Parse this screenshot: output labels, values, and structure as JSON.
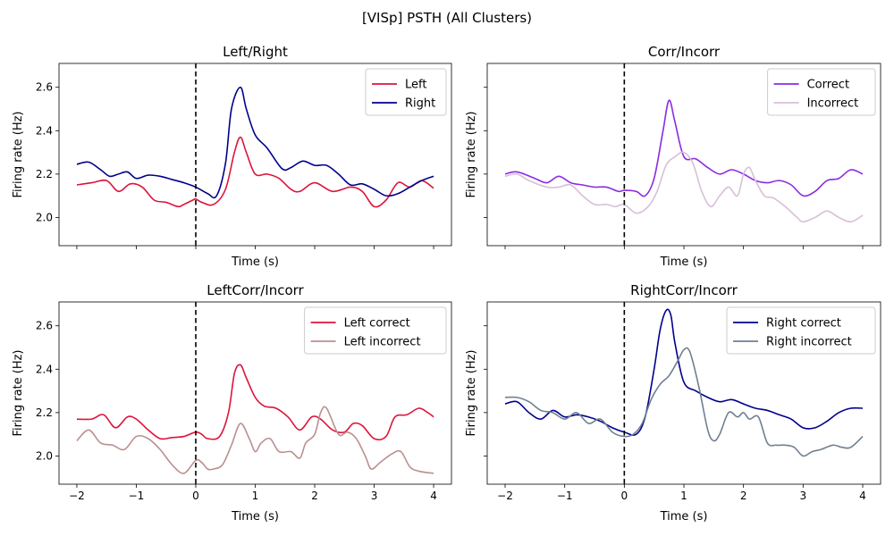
{
  "figure": {
    "suptitle": "[VISp] PSTH (All Clusters)"
  },
  "chart_data": [
    {
      "type": "line",
      "title": "Left/Right",
      "xlabel": "Time (s)",
      "ylabel": "Firing rate (Hz)",
      "xlim": [
        -2.3,
        4.3
      ],
      "ylim": [
        1.87,
        2.71
      ],
      "xticks": [
        -2,
        -1,
        0,
        1,
        2,
        3,
        4
      ],
      "yticks": [
        2.0,
        2.2,
        2.4,
        2.6
      ],
      "show_xticklabels": false,
      "show_yticklabels": true,
      "vline": 0,
      "legend": "upper right",
      "series": [
        {
          "name": "Left",
          "color": "#dc143c",
          "x": [
            -2.0,
            -1.75,
            -1.5,
            -1.3,
            -1.1,
            -0.9,
            -0.7,
            -0.5,
            -0.3,
            -0.2,
            -0.05,
            0.0,
            0.1,
            0.3,
            0.5,
            0.65,
            0.75,
            0.85,
            1.0,
            1.2,
            1.4,
            1.6,
            1.75,
            2.0,
            2.3,
            2.6,
            2.8,
            3.0,
            3.2,
            3.4,
            3.6,
            3.8,
            4.0
          ],
          "y": [
            2.15,
            2.16,
            2.17,
            2.12,
            2.155,
            2.14,
            2.08,
            2.07,
            2.05,
            2.06,
            2.08,
            2.085,
            2.07,
            2.06,
            2.13,
            2.3,
            2.37,
            2.3,
            2.2,
            2.2,
            2.18,
            2.13,
            2.12,
            2.16,
            2.12,
            2.14,
            2.12,
            2.05,
            2.08,
            2.16,
            2.14,
            2.17,
            2.135
          ]
        },
        {
          "name": "Right",
          "color": "#00008b",
          "x": [
            -2.0,
            -1.8,
            -1.6,
            -1.45,
            -1.3,
            -1.15,
            -1.0,
            -0.8,
            -0.6,
            -0.4,
            -0.2,
            0.0,
            0.2,
            0.35,
            0.5,
            0.6,
            0.75,
            0.85,
            1.0,
            1.2,
            1.45,
            1.6,
            1.8,
            2.0,
            2.2,
            2.4,
            2.6,
            2.8,
            3.0,
            3.2,
            3.4,
            3.6,
            3.8,
            4.0
          ],
          "y": [
            2.245,
            2.255,
            2.22,
            2.19,
            2.2,
            2.21,
            2.18,
            2.195,
            2.19,
            2.175,
            2.16,
            2.14,
            2.11,
            2.1,
            2.25,
            2.5,
            2.6,
            2.5,
            2.38,
            2.32,
            2.225,
            2.23,
            2.26,
            2.24,
            2.24,
            2.2,
            2.15,
            2.155,
            2.13,
            2.1,
            2.11,
            2.14,
            2.17,
            2.19
          ]
        }
      ]
    },
    {
      "type": "line",
      "title": "Corr/Incorr",
      "xlabel": "Time (s)",
      "ylabel": "Firing rate (Hz)",
      "xlim": [
        -2.3,
        4.3
      ],
      "ylim": [
        1.87,
        2.71
      ],
      "xticks": [
        -2,
        -1,
        0,
        1,
        2,
        3,
        4
      ],
      "yticks": [
        2.0,
        2.2,
        2.4,
        2.6
      ],
      "show_xticklabels": false,
      "show_yticklabels": false,
      "vline": 0,
      "legend": "upper right",
      "series": [
        {
          "name": "Correct",
          "color": "#8a2be2",
          "x": [
            -2.0,
            -1.8,
            -1.5,
            -1.3,
            -1.1,
            -0.9,
            -0.7,
            -0.5,
            -0.3,
            -0.1,
            0.0,
            0.2,
            0.35,
            0.5,
            0.65,
            0.75,
            0.85,
            1.0,
            1.2,
            1.4,
            1.6,
            1.8,
            2.0,
            2.2,
            2.4,
            2.6,
            2.8,
            3.0,
            3.2,
            3.4,
            3.6,
            3.8,
            4.0
          ],
          "y": [
            2.2,
            2.21,
            2.18,
            2.16,
            2.19,
            2.16,
            2.15,
            2.14,
            2.14,
            2.12,
            2.125,
            2.12,
            2.1,
            2.18,
            2.4,
            2.54,
            2.44,
            2.28,
            2.27,
            2.23,
            2.2,
            2.22,
            2.2,
            2.17,
            2.16,
            2.17,
            2.15,
            2.1,
            2.12,
            2.17,
            2.18,
            2.22,
            2.2
          ]
        },
        {
          "name": "Incorrect",
          "color": "#d8bfd8",
          "x": [
            -2.0,
            -1.8,
            -1.6,
            -1.3,
            -1.1,
            -0.9,
            -0.7,
            -0.5,
            -0.3,
            -0.15,
            0.0,
            0.2,
            0.4,
            0.55,
            0.7,
            0.85,
            1.0,
            1.15,
            1.3,
            1.45,
            1.6,
            1.75,
            1.9,
            2.0,
            2.1,
            2.2,
            2.35,
            2.5,
            2.7,
            2.9,
            3.0,
            3.2,
            3.4,
            3.6,
            3.8,
            4.0
          ],
          "y": [
            2.19,
            2.2,
            2.17,
            2.14,
            2.14,
            2.15,
            2.1,
            2.06,
            2.06,
            2.05,
            2.06,
            2.02,
            2.05,
            2.12,
            2.24,
            2.28,
            2.3,
            2.25,
            2.12,
            2.05,
            2.1,
            2.14,
            2.1,
            2.2,
            2.23,
            2.17,
            2.1,
            2.09,
            2.05,
            2.0,
            1.98,
            2.0,
            2.03,
            2.0,
            1.98,
            2.01
          ]
        }
      ]
    },
    {
      "type": "line",
      "title": "LeftCorr/Incorr",
      "xlabel": "Time (s)",
      "ylabel": "Firing rate (Hz)",
      "xlim": [
        -2.3,
        4.3
      ],
      "ylim": [
        1.87,
        2.71
      ],
      "xticks": [
        -2,
        -1,
        0,
        1,
        2,
        3,
        4
      ],
      "yticks": [
        2.0,
        2.2,
        2.4,
        2.6
      ],
      "show_xticklabels": true,
      "show_yticklabels": true,
      "vline": 0,
      "legend": "upper right",
      "series": [
        {
          "name": "Left correct",
          "color": "#dc143c",
          "x": [
            -2.0,
            -1.75,
            -1.55,
            -1.35,
            -1.15,
            -1.0,
            -0.8,
            -0.6,
            -0.4,
            -0.2,
            0.0,
            0.1,
            0.2,
            0.4,
            0.55,
            0.65,
            0.75,
            0.85,
            1.0,
            1.15,
            1.35,
            1.55,
            1.75,
            1.95,
            2.1,
            2.3,
            2.5,
            2.65,
            2.8,
            3.0,
            3.2,
            3.35,
            3.55,
            3.75,
            3.9,
            4.0
          ],
          "y": [
            2.17,
            2.17,
            2.19,
            2.13,
            2.18,
            2.17,
            2.12,
            2.08,
            2.085,
            2.09,
            2.11,
            2.1,
            2.08,
            2.09,
            2.2,
            2.38,
            2.42,
            2.36,
            2.27,
            2.23,
            2.22,
            2.18,
            2.12,
            2.18,
            2.17,
            2.12,
            2.11,
            2.15,
            2.14,
            2.08,
            2.09,
            2.18,
            2.19,
            2.22,
            2.2,
            2.18
          ]
        },
        {
          "name": "Left incorrect",
          "color": "#bc8f8f",
          "x": [
            -2.0,
            -1.8,
            -1.6,
            -1.4,
            -1.2,
            -1.0,
            -0.8,
            -0.6,
            -0.4,
            -0.2,
            0.0,
            0.1,
            0.2,
            0.3,
            0.45,
            0.6,
            0.75,
            0.9,
            1.0,
            1.1,
            1.25,
            1.4,
            1.6,
            1.75,
            1.85,
            2.0,
            2.1,
            2.2,
            2.4,
            2.55,
            2.7,
            2.85,
            2.95,
            3.1,
            3.3,
            3.45,
            3.6,
            3.75,
            4.0
          ],
          "y": [
            2.07,
            2.12,
            2.06,
            2.05,
            2.03,
            2.09,
            2.08,
            2.03,
            1.96,
            1.92,
            1.98,
            1.97,
            1.94,
            1.94,
            1.96,
            2.05,
            2.15,
            2.08,
            2.02,
            2.06,
            2.08,
            2.02,
            2.02,
            1.99,
            2.06,
            2.1,
            2.2,
            2.22,
            2.1,
            2.11,
            2.08,
            2.0,
            1.94,
            1.97,
            2.01,
            2.02,
            1.95,
            1.93,
            1.92
          ]
        }
      ]
    },
    {
      "type": "line",
      "title": "RightCorr/Incorr",
      "xlabel": "Time (s)",
      "ylabel": "Firing rate (Hz)",
      "xlim": [
        -2.3,
        4.3
      ],
      "ylim": [
        1.87,
        2.71
      ],
      "xticks": [
        -2,
        -1,
        0,
        1,
        2,
        3,
        4
      ],
      "yticks": [
        2.0,
        2.2,
        2.4,
        2.6
      ],
      "show_xticklabels": true,
      "show_yticklabels": false,
      "vline": 0,
      "legend": "upper right",
      "series": [
        {
          "name": "Right correct",
          "color": "#00008b",
          "x": [
            -2.0,
            -1.8,
            -1.6,
            -1.4,
            -1.2,
            -1.0,
            -0.8,
            -0.6,
            -0.4,
            -0.2,
            0.0,
            0.2,
            0.35,
            0.5,
            0.6,
            0.7,
            0.78,
            0.85,
            1.0,
            1.2,
            1.4,
            1.6,
            1.8,
            2.0,
            2.2,
            2.4,
            2.6,
            2.8,
            3.0,
            3.2,
            3.4,
            3.6,
            3.8,
            4.0
          ],
          "y": [
            2.24,
            2.25,
            2.2,
            2.17,
            2.21,
            2.18,
            2.19,
            2.18,
            2.16,
            2.13,
            2.11,
            2.1,
            2.18,
            2.4,
            2.58,
            2.67,
            2.65,
            2.52,
            2.34,
            2.3,
            2.27,
            2.25,
            2.26,
            2.24,
            2.22,
            2.21,
            2.19,
            2.17,
            2.13,
            2.13,
            2.16,
            2.2,
            2.22,
            2.22
          ]
        },
        {
          "name": "Right incorrect",
          "color": "#708090",
          "x": [
            -2.0,
            -1.8,
            -1.6,
            -1.4,
            -1.2,
            -1.0,
            -0.8,
            -0.6,
            -0.4,
            -0.2,
            0.0,
            0.15,
            0.3,
            0.45,
            0.6,
            0.75,
            0.9,
            1.0,
            1.1,
            1.25,
            1.4,
            1.5,
            1.6,
            1.75,
            1.9,
            2.0,
            2.1,
            2.25,
            2.4,
            2.55,
            2.7,
            2.85,
            3.0,
            3.15,
            3.3,
            3.5,
            3.65,
            3.8,
            4.0
          ],
          "y": [
            2.27,
            2.27,
            2.25,
            2.21,
            2.2,
            2.17,
            2.2,
            2.15,
            2.17,
            2.11,
            2.09,
            2.1,
            2.15,
            2.26,
            2.33,
            2.37,
            2.44,
            2.49,
            2.48,
            2.32,
            2.12,
            2.07,
            2.1,
            2.2,
            2.18,
            2.2,
            2.17,
            2.18,
            2.06,
            2.05,
            2.05,
            2.04,
            2.0,
            2.02,
            2.03,
            2.05,
            2.04,
            2.04,
            2.09
          ]
        }
      ]
    }
  ]
}
